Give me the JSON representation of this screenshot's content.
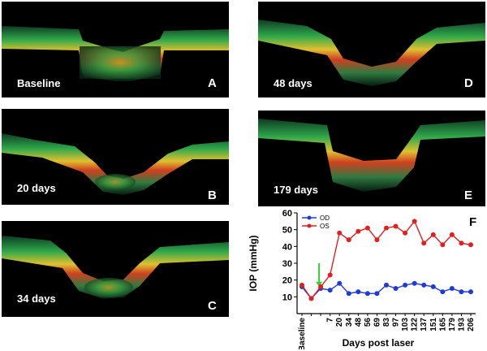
{
  "panels": [
    {
      "label": "Baseline",
      "letter": "A"
    },
    {
      "label": "20 days",
      "letter": "B"
    },
    {
      "label": "34 days",
      "letter": "C"
    },
    {
      "label": "48 days",
      "letter": "D"
    },
    {
      "label": "179 days",
      "letter": "E"
    }
  ],
  "chart_letter": "F",
  "chart_data": {
    "type": "line",
    "title": "",
    "xlabel": "Days post laser",
    "ylabel": "IOP (mmHg)",
    "ylim": [
      0,
      60
    ],
    "yticks": [
      10,
      20,
      30,
      40,
      50,
      60
    ],
    "categories": [
      "Baseline",
      "",
      "",
      "7",
      "20",
      "34",
      "48",
      "56",
      "69",
      "83",
      "97",
      "103",
      "122",
      "137",
      "151",
      "165",
      "179",
      "193",
      "206"
    ],
    "legend_position": "top-left",
    "arrow_color": "#33cc33",
    "series": [
      {
        "name": "OD",
        "color": "#1f3bd6",
        "values": [
          16,
          9,
          15,
          14,
          18,
          12,
          13,
          12,
          12,
          17,
          15,
          17,
          18,
          17,
          16,
          13,
          15,
          13,
          13
        ]
      },
      {
        "name": "OS",
        "color": "#e02020",
        "values": [
          17,
          9,
          16,
          23,
          48,
          44,
          49,
          51,
          44,
          51,
          52,
          48,
          55,
          42,
          47,
          41,
          47,
          42,
          41
        ]
      }
    ]
  }
}
